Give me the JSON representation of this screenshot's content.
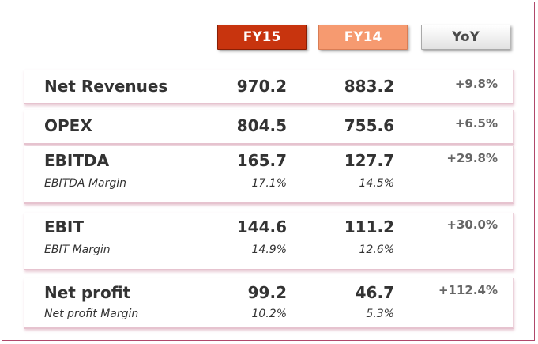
{
  "headers": {
    "fy15": "FY15",
    "fy14": "FY14",
    "yoy": "YoY"
  },
  "rows": [
    {
      "label": "Net Revenues",
      "fy15": "970.2",
      "fy14": "883.2",
      "yoy": "+9.8%"
    },
    {
      "label": "OPEX",
      "fy15": "804.5",
      "fy14": "755.6",
      "yoy": "+6.5%"
    },
    {
      "label": "EBITDA",
      "fy15": "165.7",
      "fy14": "127.7",
      "yoy": "+29.8%",
      "sub_label": "EBITDA Margin",
      "sub_fy15": "17.1%",
      "sub_fy14": "14.5%"
    },
    {
      "label": "EBIT",
      "fy15": "144.6",
      "fy14": "111.2",
      "yoy": "+30.0%",
      "sub_label": "EBIT Margin",
      "sub_fy15": "14.9%",
      "sub_fy14": "12.6%"
    },
    {
      "label": "Net profit",
      "fy15": "99.2",
      "fy14": "46.7",
      "yoy": "+112.4%",
      "sub_label": "Net profit Margin",
      "sub_fy15": "10.2%",
      "sub_fy14": "5.3%"
    }
  ],
  "colors": {
    "fy15_header": "#c8340e",
    "fy14_header": "#f69a70",
    "frame_border": "#b0486b"
  }
}
